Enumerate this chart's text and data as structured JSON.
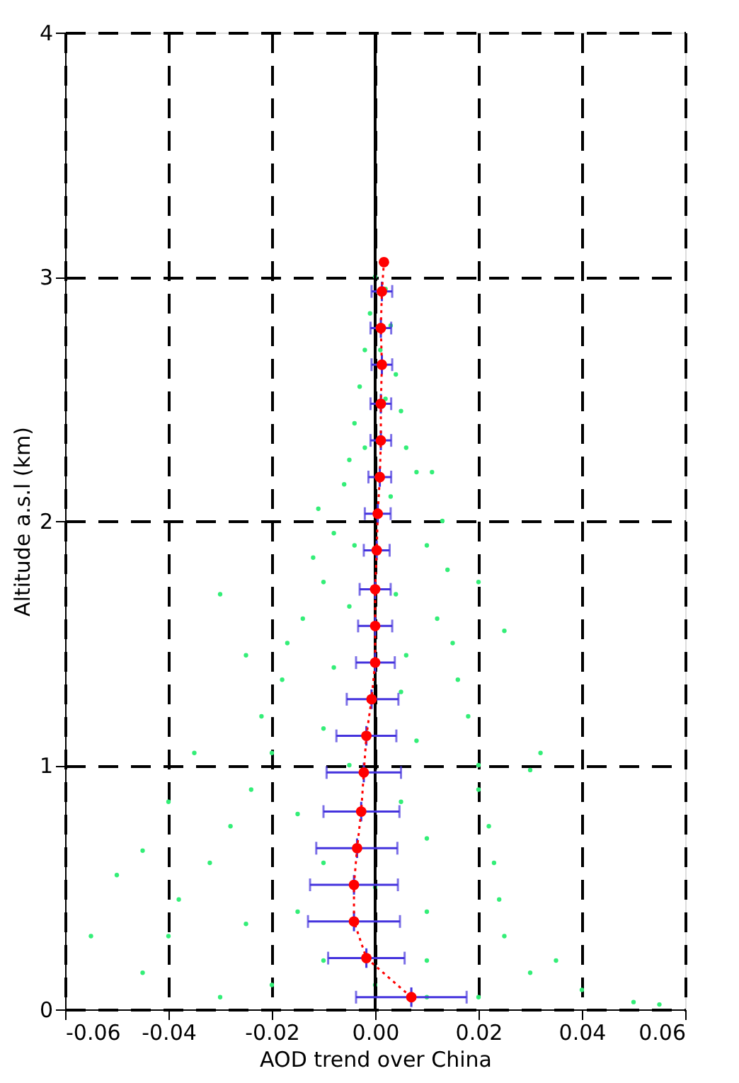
{
  "chart_data": {
    "type": "scatter",
    "xlabel": "AOD trend over China",
    "ylabel": "Altitude a.s.l (km)",
    "xlim": [
      -0.06,
      0.06
    ],
    "ylim": [
      0,
      4
    ],
    "xticks": [
      {
        "value": -0.06,
        "label": "-0.06"
      },
      {
        "value": -0.04,
        "label": "-0.04"
      },
      {
        "value": -0.02,
        "label": "-0.02"
      },
      {
        "value": 0,
        "label": "0.00"
      },
      {
        "value": 0.02,
        "label": "0.02"
      },
      {
        "value": 0.04,
        "label": "0.04"
      },
      {
        "value": 0.06,
        "label": "0.06"
      }
    ],
    "yticks": [
      0,
      1,
      2,
      3,
      4
    ],
    "grid": true,
    "ref_lines": [
      {
        "axis": "x",
        "value": 0,
        "color": "#000000",
        "line_style": "solid"
      }
    ],
    "series": [
      {
        "type": "scatter",
        "color": "#33ee77",
        "marker": "circle",
        "x": [
          0.0,
          0.002,
          -0.001,
          0.003,
          -0.002,
          0.004,
          -0.003,
          0.005,
          -0.004,
          0.006,
          -0.005,
          0.008,
          -0.006,
          0.011,
          -0.011,
          0.013,
          -0.008,
          0.01,
          -0.012,
          0.014,
          -0.03,
          0.02,
          -0.01,
          -0.014,
          0.012,
          -0.025,
          -0.017,
          0.015,
          0.025,
          -0.018,
          0.016,
          -0.022,
          0.018,
          -0.02,
          0.02,
          0.03,
          -0.035,
          -0.024,
          0.02,
          -0.04,
          -0.028,
          0.022,
          -0.045,
          -0.032,
          0.023,
          -0.05,
          -0.038,
          0.024,
          -0.055,
          -0.04,
          0.025,
          -0.045,
          0.03,
          0.04,
          0.05,
          0.055,
          -0.03,
          -0.02,
          0.0,
          0.01,
          0.02,
          -0.01,
          0.01,
          -0.015,
          0.01,
          0.0,
          -0.01,
          0.01,
          -0.015,
          0.005,
          -0.005,
          0.008,
          -0.01,
          0.005,
          -0.008,
          0.006,
          -0.005,
          0.004,
          -0.004,
          0.003,
          -0.002,
          0.002,
          0.001,
          0.032,
          -0.025,
          0.035
        ],
        "values": [
          3.0,
          2.95,
          2.85,
          2.8,
          2.7,
          2.6,
          2.55,
          2.45,
          2.4,
          2.3,
          2.25,
          2.2,
          2.15,
          2.2,
          2.05,
          2.0,
          1.95,
          1.9,
          1.85,
          1.8,
          1.7,
          1.75,
          1.75,
          1.6,
          1.6,
          1.45,
          1.5,
          1.5,
          1.55,
          1.35,
          1.35,
          1.2,
          1.2,
          1.05,
          1.0,
          0.98,
          1.05,
          0.9,
          0.9,
          0.85,
          0.75,
          0.75,
          0.65,
          0.6,
          0.6,
          0.55,
          0.45,
          0.45,
          0.3,
          0.3,
          0.3,
          0.15,
          0.15,
          0.08,
          0.03,
          0.02,
          0.05,
          0.1,
          0.1,
          0.05,
          0.05,
          0.2,
          0.2,
          0.4,
          0.4,
          0.5,
          0.6,
          0.7,
          0.8,
          0.85,
          1.0,
          1.1,
          1.15,
          1.3,
          1.4,
          1.45,
          1.65,
          1.7,
          1.9,
          2.1,
          2.3,
          2.5,
          2.7,
          1.05,
          0.35,
          0.2
        ]
      },
      {
        "type": "line",
        "color": "#ff0000",
        "marker": "circle",
        "line_style": "dotted",
        "x": [
          0.007,
          -0.0017,
          -0.0041,
          -0.0041,
          -0.0035,
          -0.0027,
          -0.0022,
          -0.0017,
          -0.0007,
          0.0,
          0.0,
          0.0,
          0.0003,
          0.0005,
          0.0009,
          0.0011,
          0.0011,
          0.0013,
          0.0011,
          0.0013,
          0.0017
        ],
        "values": [
          0.05,
          0.21,
          0.36,
          0.51,
          0.66,
          0.81,
          0.97,
          1.12,
          1.27,
          1.42,
          1.57,
          1.72,
          1.88,
          2.03,
          2.18,
          2.33,
          2.48,
          2.64,
          2.79,
          2.94,
          3.06
        ],
        "xerrors": [
          [
            -0.0037,
            0.0177
          ],
          [
            -0.0091,
            0.0057
          ],
          [
            -0.013,
            0.0048
          ],
          [
            -0.0126,
            0.0044
          ],
          [
            -0.0114,
            0.0043
          ],
          [
            -0.01,
            0.0047
          ],
          [
            -0.0094,
            0.005
          ],
          [
            -0.0075,
            0.0041
          ],
          [
            -0.0055,
            0.0045
          ],
          [
            -0.0037,
            0.0038
          ],
          [
            -0.0033,
            0.0033
          ],
          [
            -0.003,
            0.003
          ],
          [
            -0.0022,
            0.0028
          ],
          [
            -0.002,
            0.003
          ],
          [
            -0.0013,
            0.0031
          ],
          [
            -0.0009,
            0.0031
          ],
          [
            -0.0009,
            0.0031
          ],
          [
            -0.0007,
            0.0033
          ],
          [
            -0.0009,
            0.0031
          ],
          [
            -0.0007,
            0.0033
          ],
          null
        ],
        "errors": [
          0.04,
          0.04,
          0.04,
          0.04,
          0.04,
          0.04,
          0.04,
          0.04,
          0.04,
          0.04,
          0.04,
          0.04,
          0.04,
          0.04,
          0.04,
          0.04,
          0.04,
          0.04,
          0.04,
          0.04,
          null
        ]
      }
    ]
  }
}
